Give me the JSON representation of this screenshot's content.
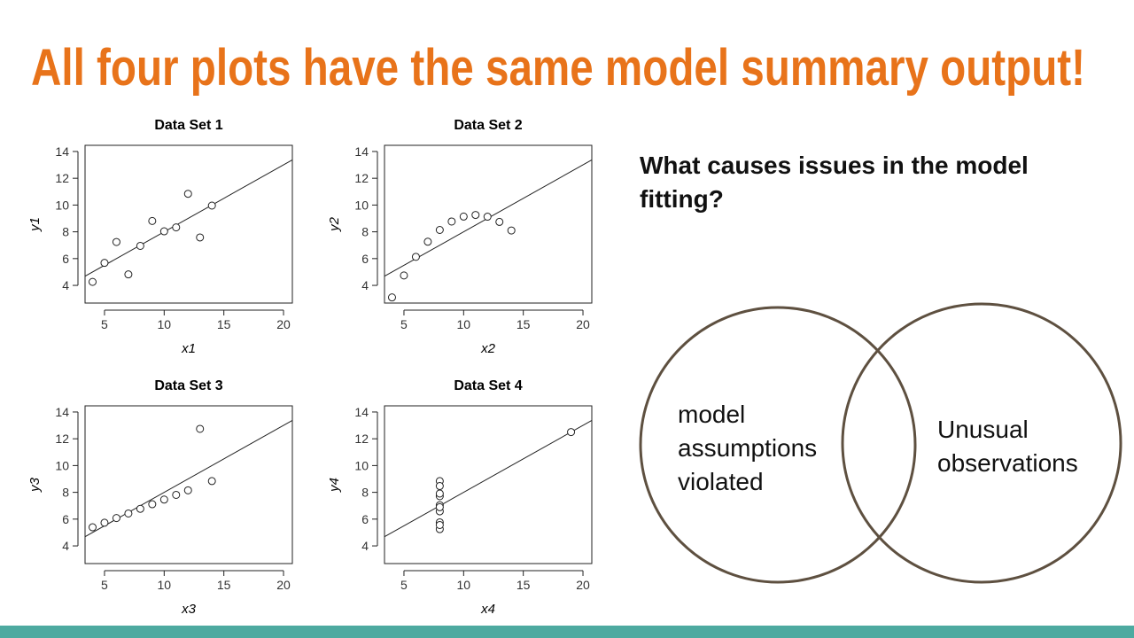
{
  "slide_title": "All four plots have the same model summary output!",
  "question": [
    "What causes issues in the model",
    "fitting?"
  ],
  "venn": {
    "left": [
      "model",
      "assumptions",
      "violated"
    ],
    "right": [
      "Unusual",
      "observations"
    ]
  },
  "chart_data": [
    {
      "type": "scatter",
      "title": "Data Set 1",
      "x_label": "x1",
      "y_label": "y1",
      "x": [
        10,
        8,
        13,
        9,
        11,
        14,
        6,
        4,
        12,
        7,
        5
      ],
      "y": [
        8.04,
        6.95,
        7.58,
        8.81,
        8.33,
        9.96,
        7.24,
        4.26,
        10.84,
        4.82,
        5.68
      ],
      "fit": {
        "intercept": 3,
        "slope": 0.5
      },
      "xlim": [
        3.37,
        20.74
      ],
      "ylim": [
        2.68,
        14.46
      ],
      "xticks": [
        5,
        10,
        15,
        20
      ],
      "yticks": [
        4,
        6,
        8,
        10,
        12,
        14
      ]
    },
    {
      "type": "scatter",
      "title": "Data Set 2",
      "x_label": "x2",
      "y_label": "y2",
      "x": [
        10,
        8,
        13,
        9,
        11,
        14,
        6,
        4,
        12,
        7,
        5
      ],
      "y": [
        9.14,
        8.14,
        8.74,
        8.77,
        9.26,
        8.1,
        6.13,
        3.1,
        9.13,
        7.26,
        4.74
      ],
      "fit": {
        "intercept": 3,
        "slope": 0.5
      },
      "xlim": [
        3.37,
        20.74
      ],
      "ylim": [
        2.68,
        14.46
      ],
      "xticks": [
        5,
        10,
        15,
        20
      ],
      "yticks": [
        4,
        6,
        8,
        10,
        12,
        14
      ]
    },
    {
      "type": "scatter",
      "title": "Data Set 3",
      "x_label": "x3",
      "y_label": "y3",
      "x": [
        10,
        8,
        13,
        9,
        11,
        14,
        6,
        4,
        12,
        7,
        5
      ],
      "y": [
        7.46,
        6.77,
        12.74,
        7.11,
        7.81,
        8.84,
        6.08,
        5.39,
        8.15,
        6.42,
        5.73
      ],
      "fit": {
        "intercept": 3,
        "slope": 0.5
      },
      "xlim": [
        3.37,
        20.74
      ],
      "ylim": [
        2.68,
        14.46
      ],
      "xticks": [
        5,
        10,
        15,
        20
      ],
      "yticks": [
        4,
        6,
        8,
        10,
        12,
        14
      ]
    },
    {
      "type": "scatter",
      "title": "Data Set 4",
      "x_label": "x4",
      "y_label": "y4",
      "x": [
        8,
        8,
        8,
        8,
        8,
        8,
        8,
        19,
        8,
        8,
        8
      ],
      "y": [
        6.58,
        5.76,
        7.71,
        8.84,
        8.47,
        7.04,
        5.25,
        12.5,
        5.56,
        7.91,
        6.89
      ],
      "fit": {
        "intercept": 3,
        "slope": 0.5
      },
      "xlim": [
        3.37,
        20.74
      ],
      "ylim": [
        2.68,
        14.46
      ],
      "xticks": [
        5,
        10,
        15,
        20
      ],
      "yticks": [
        4,
        6,
        8,
        10,
        12,
        14
      ]
    }
  ]
}
